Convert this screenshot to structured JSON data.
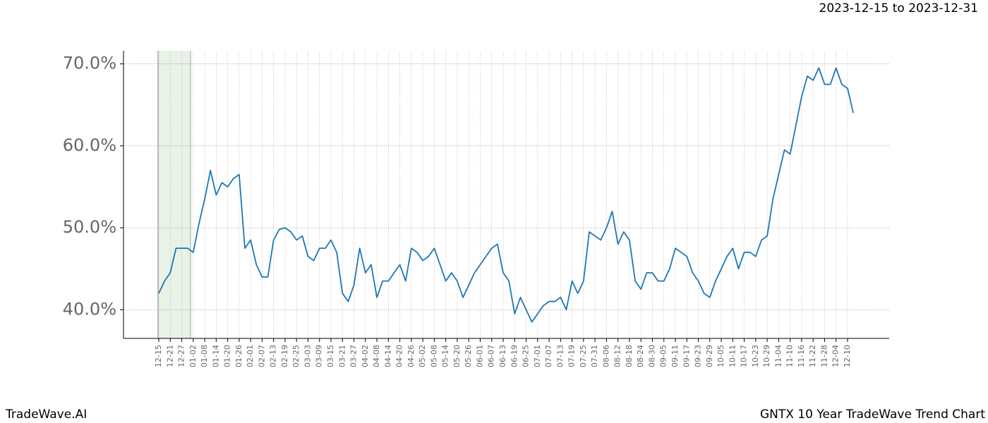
{
  "chart_data": {
    "type": "line",
    "title": "GNTX 10 Year TradeWave Trend Chart",
    "subtitle": "2023-12-15 to 2023-12-31",
    "source": "TradeWave.AI",
    "categories": [
      "12-15",
      null,
      "12-21",
      null,
      "12-27",
      null,
      "01-02",
      null,
      "01-08",
      null,
      "01-14",
      null,
      "01-20",
      null,
      "01-26",
      null,
      "02-01",
      null,
      "02-07",
      null,
      "02-13",
      null,
      "02-19",
      null,
      "02-25",
      null,
      "03-03",
      null,
      "03-09",
      null,
      "03-15",
      null,
      "03-21",
      null,
      "03-27",
      null,
      "04-02",
      null,
      "04-08",
      null,
      "04-14",
      null,
      "04-20",
      null,
      "04-26",
      null,
      "05-02",
      null,
      "05-08",
      null,
      "05-14",
      null,
      "05-20",
      null,
      "05-26",
      null,
      "06-01",
      null,
      "06-07",
      null,
      "06-13",
      null,
      "06-19",
      null,
      "06-25",
      null,
      "07-01",
      null,
      "07-07",
      null,
      "07-13",
      null,
      "07-19",
      null,
      "07-25",
      null,
      "07-31",
      null,
      "08-06",
      null,
      "08-12",
      null,
      "08-18",
      null,
      "08-24",
      null,
      "08-30",
      null,
      "09-05",
      null,
      "09-11",
      null,
      "09-17",
      null,
      "09-23",
      null,
      "09-29",
      null,
      "10-05",
      null,
      "10-11",
      null,
      "10-17",
      null,
      "10-23",
      null,
      "10-29",
      null,
      "11-04",
      null,
      "11-10",
      null,
      "11-16",
      null,
      "11-22",
      null,
      "11-28",
      null,
      "12-04",
      null,
      "12-10",
      null
    ],
    "series": [
      {
        "color": "#1f77b4",
        "values": [
          42.0,
          43.5,
          44.5,
          47.5,
          47.5,
          47.5,
          47.0,
          50.5,
          53.5,
          57.0,
          54.0,
          55.5,
          55.0,
          56.0,
          56.5,
          47.5,
          48.5,
          45.5,
          44.0,
          44.0,
          48.5,
          49.8,
          50.0,
          49.5,
          48.5,
          49.0,
          46.5,
          46.0,
          47.5,
          47.5,
          48.5,
          47.0,
          42.0,
          41.0,
          43.0,
          47.5,
          44.5,
          45.5,
          41.5,
          43.5,
          43.5,
          44.5,
          45.5,
          43.5,
          47.5,
          47.0,
          46.0,
          46.5,
          47.5,
          45.5,
          43.5,
          44.5,
          43.5,
          41.5,
          43.0,
          44.5,
          45.5,
          46.5,
          47.5,
          48.0,
          44.5,
          43.5,
          39.5,
          41.5,
          40.0,
          38.5,
          39.5,
          40.5,
          41.0,
          41.0,
          41.5,
          40.0,
          43.5,
          42.0,
          43.5,
          49.5,
          49.0,
          48.5,
          50.0,
          52.0,
          48.0,
          49.5,
          48.5,
          43.5,
          42.5,
          44.5,
          44.5,
          43.5,
          43.5,
          45.0,
          47.5,
          47.0,
          46.5,
          44.5,
          43.5,
          42.0,
          41.5,
          43.5,
          45.0,
          46.5,
          47.5,
          45.0,
          47.0,
          47.0,
          46.5,
          48.5,
          49.0,
          53.5,
          56.5,
          59.5,
          59.0,
          62.5,
          66.0,
          68.5,
          68.0,
          69.5,
          67.5,
          67.5,
          69.5,
          67.5,
          67.0,
          64.0
        ]
      }
    ],
    "ylim": [
      36.5,
      71.6
    ],
    "yticks": [
      {
        "value": 40,
        "label": "40.0%"
      },
      {
        "value": 50,
        "label": "50.0%"
      },
      {
        "value": 60,
        "label": "60.0%"
      },
      {
        "value": 70,
        "label": "70.0%"
      }
    ],
    "grid": true
  }
}
